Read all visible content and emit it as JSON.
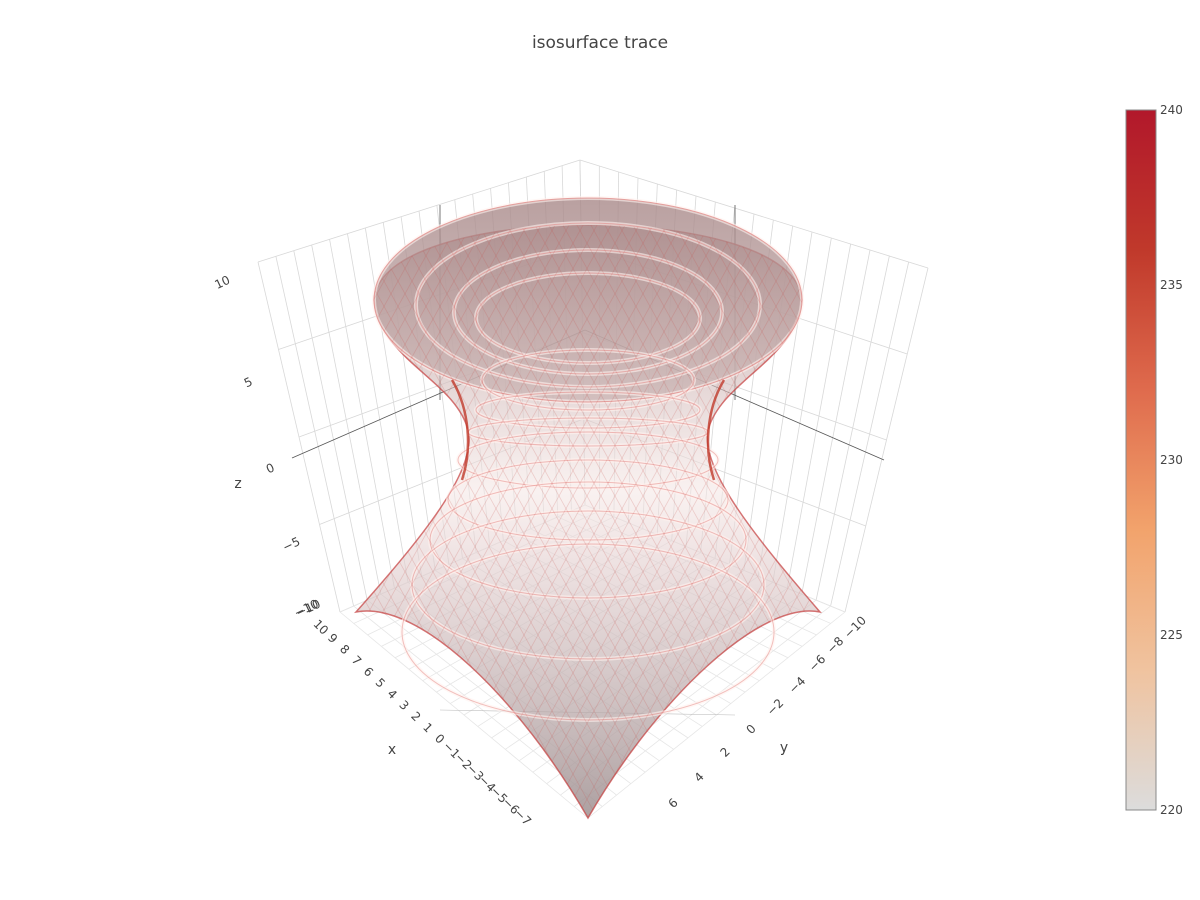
{
  "title": "isosurface trace",
  "chart_data": {
    "type": "isosurface",
    "title": "isosurface trace",
    "colorscale": "reds",
    "cmin": 220,
    "cmax": 240,
    "colorbar": {
      "ticks": [
        220,
        225,
        230,
        235,
        240
      ],
      "labels": [
        "220",
        "225",
        "230",
        "235",
        "240"
      ],
      "colors": [
        "#dcdcdc",
        "#f0c39f",
        "#f2a36c",
        "#df6b4d",
        "#c0392b",
        "#b2182b"
      ]
    },
    "x_axis": {
      "title": "x",
      "ticks": [
        "−10",
        "10",
        "9",
        "8",
        "7",
        "6",
        "5",
        "4",
        "3",
        "2",
        "1",
        "0",
        "−1",
        "−2",
        "−3",
        "−4",
        "−5",
        "−6",
        "−7"
      ]
    },
    "y_axis": {
      "title": "y",
      "ticks": [
        "−10",
        "−8",
        "−6",
        "−4",
        "−2",
        "0",
        "2",
        "4",
        "6"
      ]
    },
    "z_axis": {
      "title": "z",
      "ticks": [
        "10",
        "5",
        "0",
        "−5",
        "−10"
      ]
    },
    "surface": "hyperboloid of one sheet",
    "surface_color": "#b8a0a0",
    "edge_color": "#d9534f"
  }
}
